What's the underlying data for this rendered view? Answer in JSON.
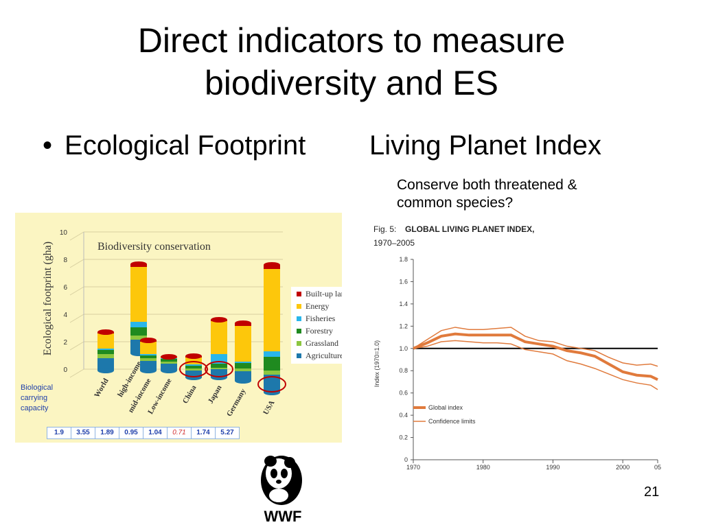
{
  "slide": {
    "title_line1": "Direct indicators to measure",
    "title_line2": "biodiversity and ES",
    "bullet_symbol": "•",
    "bullet_text": "Ecological Footprint",
    "lpi_heading": "Living Planet Index",
    "lpi_note_line1": "Conserve both threatened &",
    "lpi_note_line2": "common species?",
    "page_number": "21",
    "logo_text": "WWF"
  },
  "colors": {
    "built_up_land": "#c00000",
    "energy": "#fdc70b",
    "fisheries": "#29b6ea",
    "forestry": "#1f8a1f",
    "grassland": "#8cc63f",
    "agriculture": "#1d78ab",
    "panel_bg": "#fbf5c2",
    "lpi_line": "#e07a3c",
    "bcc_text": "#1f3faa"
  },
  "chart_data": [
    {
      "type": "bar",
      "stacked": true,
      "title": "Biodiversity conservation",
      "ylabel": "Ecological footprint (gha)",
      "ylim": [
        0,
        10
      ],
      "yticks": [
        "10",
        "8",
        "6",
        "4",
        "2",
        "0"
      ],
      "categories": [
        "World",
        "high-income",
        "mid-income",
        "Low-income",
        "China",
        "Japan",
        "Germany",
        "USA"
      ],
      "series": [
        {
          "name": "Agriculture",
          "values": [
            0.9,
            1.0,
            0.7,
            0.5,
            0.5,
            0.6,
            0.7,
            1.3
          ]
        },
        {
          "name": "Grassland",
          "values": [
            0.3,
            0.3,
            0.2,
            0.15,
            0.15,
            0.1,
            0.2,
            0.3
          ]
        },
        {
          "name": "Forestry",
          "values": [
            0.3,
            0.6,
            0.2,
            0.2,
            0.2,
            0.3,
            0.4,
            1.0
          ]
        },
        {
          "name": "Fisheries",
          "values": [
            0.1,
            0.4,
            0.1,
            0.05,
            0.1,
            0.7,
            0.1,
            0.4
          ]
        },
        {
          "name": "Energy",
          "values": [
            1.1,
            4.0,
            0.9,
            0.05,
            0.5,
            2.4,
            2.6,
            6.0
          ]
        },
        {
          "name": "Built-up land",
          "values": [
            0.1,
            0.2,
            0.1,
            0.05,
            0.1,
            0.1,
            0.2,
            0.3
          ]
        }
      ],
      "highlighted": [
        "China",
        "Japan",
        "USA"
      ],
      "biological_capacity": {
        "label": "Biological carrying capacity",
        "values": [
          "1.9",
          "3.55",
          "1.89",
          "0.95",
          "1.04",
          "0.71",
          "1.74",
          "5.27"
        ]
      },
      "legend_position": "right"
    },
    {
      "type": "line",
      "title_prefix": "Fig. 5:",
      "title": "GLOBAL LIVING PLANET INDEX,",
      "subtitle": "1970–2005",
      "ylabel": "Index (1970=1.0)",
      "ylim": [
        0,
        1.8
      ],
      "yticks": [
        "1.8",
        "1.6",
        "1.4",
        "1.2",
        "1.0",
        "0.8",
        "0.6",
        "0.4",
        "0.2",
        "0"
      ],
      "xlim": [
        1970,
        2005
      ],
      "xticks": [
        "1970",
        "1980",
        "1990",
        "2000",
        "05"
      ],
      "reference_line": 1.0,
      "x": [
        1970,
        1972,
        1974,
        1976,
        1978,
        1980,
        1982,
        1984,
        1986,
        1988,
        1990,
        1992,
        1994,
        1996,
        1998,
        2000,
        2002,
        2004,
        2005
      ],
      "series": [
        {
          "name": "Global index",
          "values": [
            1.0,
            1.05,
            1.11,
            1.13,
            1.12,
            1.12,
            1.12,
            1.12,
            1.06,
            1.04,
            1.02,
            0.98,
            0.96,
            0.93,
            0.86,
            0.79,
            0.76,
            0.75,
            0.72
          ]
        },
        {
          "name": "Confidence limits",
          "values": [
            1.0,
            1.08,
            1.16,
            1.19,
            1.17,
            1.17,
            1.18,
            1.19,
            1.11,
            1.07,
            1.06,
            1.02,
            1.0,
            0.98,
            0.92,
            0.87,
            0.85,
            0.86,
            0.84
          ]
        },
        {
          "name": "",
          "values": [
            1.0,
            1.02,
            1.06,
            1.07,
            1.06,
            1.05,
            1.05,
            1.04,
            0.99,
            0.97,
            0.95,
            0.89,
            0.86,
            0.82,
            0.77,
            0.72,
            0.69,
            0.67,
            0.63
          ]
        }
      ],
      "legend": [
        "Global index",
        "Confidence limits"
      ],
      "legend_position": "bottom-left"
    }
  ]
}
